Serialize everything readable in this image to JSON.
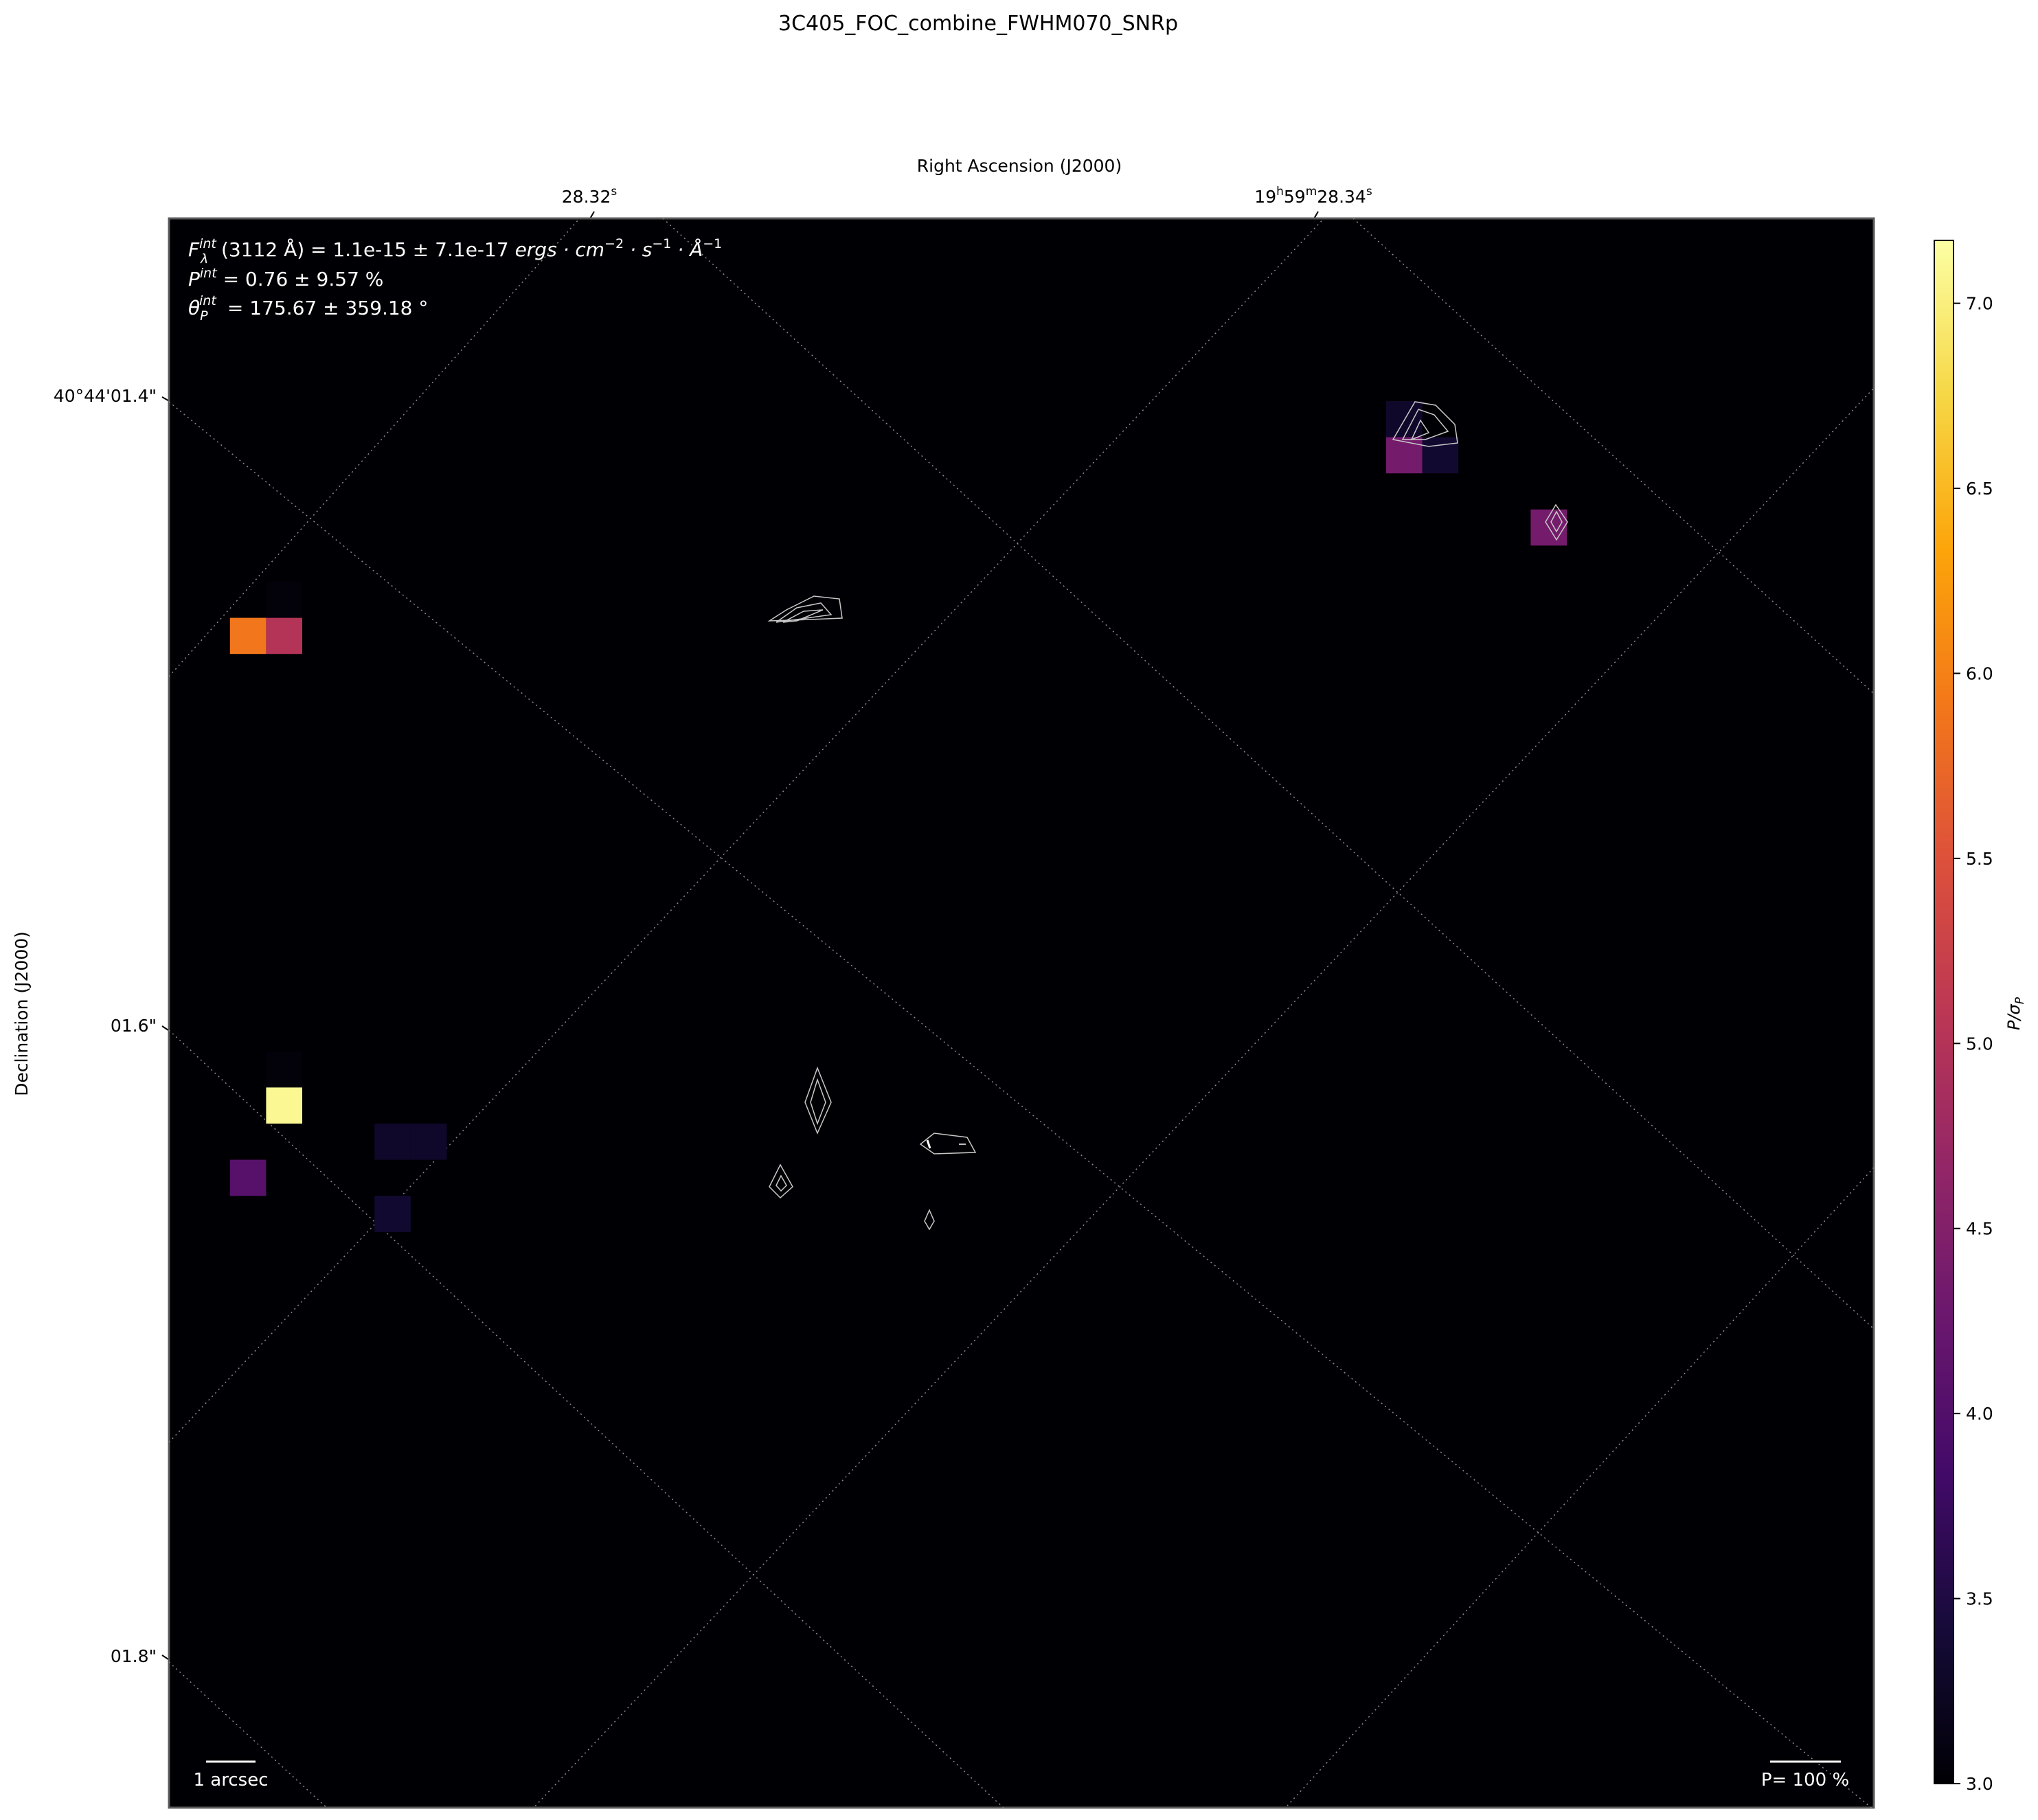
{
  "figure": {
    "title": "3C405_FOC_combine_FWHM070_SNRp"
  },
  "chart_data": {
    "type": "heatmap",
    "title": "3C405_FOC_combine_FWHM070_SNRp",
    "xlabel": "Right Ascension (J2000)",
    "ylabel": "Declination (J2000)",
    "x_ticks": [
      {
        "base": "28.32",
        "sup": "s"
      },
      {
        "parts": [
          [
            "19",
            "h"
          ],
          [
            "59",
            "m"
          ],
          [
            "28.34",
            "s"
          ]
        ]
      }
    ],
    "y_ticks": [
      "40°44'01.4\"",
      "01.6\"",
      "01.8\""
    ],
    "background": "#000004",
    "grid": "dotted coordinate grid (on)",
    "annotations": {
      "flux": {
        "pre": "F",
        "sup": "int",
        "sub": "λ",
        "rest": "(3112 Å) = 1.1e-15 ± 7.1e-17 ",
        "units": [
          "ergs · cm",
          "−2",
          " · s",
          "−1",
          " · Å",
          "−1"
        ]
      },
      "polarization": {
        "pre": "P",
        "sup": "int",
        "rest": " = 0.76 ± 9.57 %"
      },
      "angle": {
        "pre": "θ",
        "sub": "P",
        "sup": "int",
        "rest": " = 175.67 ± 359.18 °"
      }
    },
    "scalebar_label": "1 arcsec",
    "vector_scale_label": "P= 100 %",
    "colorbar": {
      "label": "P/σ",
      "label_sub": "P",
      "colormap": "inferno",
      "range": [
        3.0,
        7.17
      ],
      "ticks": [
        "3.0",
        "3.5",
        "4.0",
        "4.5",
        "5.0",
        "5.5",
        "6.0",
        "6.5",
        "7.0"
      ]
    },
    "cells": [
      {
        "col": 0,
        "row": 0,
        "value": 3.3
      },
      {
        "col": 0,
        "row": 1,
        "value": 4.35
      },
      {
        "col": 1,
        "row": 1,
        "value": 3.35
      },
      {
        "col": 4,
        "row": 3,
        "value": 4.35
      },
      {
        "col": -31,
        "row": 5,
        "value": 3.05
      },
      {
        "col": -32,
        "row": 6,
        "value": 5.9
      },
      {
        "col": -31,
        "row": 6,
        "value": 5.0
      },
      {
        "col": -31,
        "row": 18,
        "value": 3.05
      },
      {
        "col": -31,
        "row": 19,
        "value": 7.1
      },
      {
        "col": -28,
        "row": 20,
        "value": 3.3
      },
      {
        "col": -27,
        "row": 20,
        "value": 3.3
      },
      {
        "col": -32,
        "row": 21,
        "value": 4.05
      },
      {
        "col": -28,
        "row": 22,
        "value": 3.35
      }
    ]
  }
}
